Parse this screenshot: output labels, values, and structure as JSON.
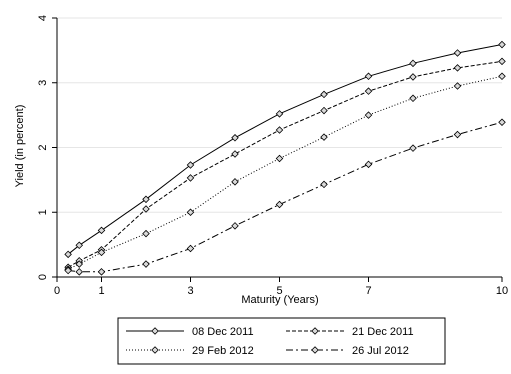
{
  "chart_data": {
    "type": "line",
    "title": "",
    "xlabel": "Maturity (Years)",
    "ylabel": "Yield (in percent)",
    "xlim": [
      0,
      10
    ],
    "ylim": [
      0,
      4
    ],
    "xticks": [
      0,
      1,
      3,
      5,
      7,
      10
    ],
    "yticks": [
      0,
      1,
      2,
      3,
      4
    ],
    "grid": true,
    "legend_position": "bottom",
    "series": [
      {
        "name": "08 Dec 2011",
        "line_style": "solid",
        "color": "#000000",
        "x": [
          0.25,
          0.5,
          1,
          2,
          3,
          4,
          5,
          6,
          7,
          8,
          9,
          10
        ],
        "y": [
          0.35,
          0.49,
          0.72,
          1.2,
          1.73,
          2.15,
          2.52,
          2.82,
          3.1,
          3.3,
          3.46,
          3.59
        ]
      },
      {
        "name": "21 Dec 2011",
        "line_style": "dashed",
        "color": "#000000",
        "x": [
          0.25,
          0.5,
          1,
          2,
          3,
          4,
          5,
          6,
          7,
          8,
          9,
          10
        ],
        "y": [
          0.15,
          0.25,
          0.42,
          1.05,
          1.53,
          1.9,
          2.27,
          2.57,
          2.87,
          3.09,
          3.23,
          3.33
        ]
      },
      {
        "name": "29 Feb 2012",
        "line_style": "dotted",
        "color": "#000000",
        "x": [
          0.25,
          0.5,
          1,
          2,
          3,
          4,
          5,
          6,
          7,
          8,
          9,
          10
        ],
        "y": [
          0.12,
          0.2,
          0.38,
          0.67,
          1.0,
          1.47,
          1.83,
          2.16,
          2.5,
          2.76,
          2.95,
          3.1
        ]
      },
      {
        "name": "26 Jul 2012",
        "line_style": "dashdot",
        "color": "#000000",
        "x": [
          0.25,
          0.5,
          1,
          2,
          3,
          4,
          5,
          6,
          7,
          8,
          9,
          10
        ],
        "y": [
          0.1,
          0.08,
          0.08,
          0.2,
          0.44,
          0.79,
          1.12,
          1.43,
          1.74,
          1.99,
          2.2,
          2.39
        ]
      }
    ]
  }
}
